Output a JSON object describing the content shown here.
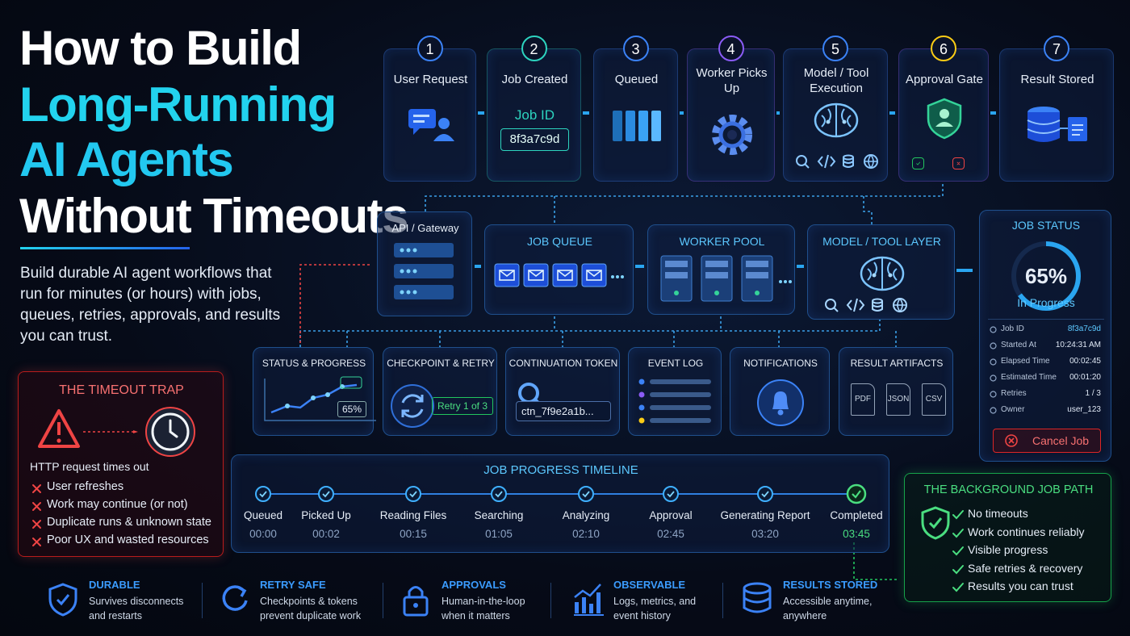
{
  "header": {
    "title_lines": [
      "How to Build",
      "Long-Running",
      "AI Agents",
      "Without Timeouts"
    ],
    "subtitle": "Build durable AI agent workflows that run for minutes (or hours) with jobs, queues, retries, approvals, and results you can trust."
  },
  "steps": [
    {
      "number": "1",
      "label": "User Request"
    },
    {
      "number": "2",
      "label": "Job Created",
      "job_id_label": "Job ID",
      "job_id": "8f3a7c9d"
    },
    {
      "number": "3",
      "label": "Queued"
    },
    {
      "number": "4",
      "label": "Worker Picks Up"
    },
    {
      "number": "5",
      "label": "Model / Tool Execution"
    },
    {
      "number": "6",
      "label": "Approval Gate"
    },
    {
      "number": "7",
      "label": "Result Stored"
    }
  ],
  "architecture": [
    {
      "label": "API / Gateway"
    },
    {
      "label": "JOB QUEUE"
    },
    {
      "label": "WORKER POOL"
    },
    {
      "label": "MODEL / TOOL LAYER"
    }
  ],
  "services": [
    {
      "label": "STATUS & PROGRESS",
      "badge": "65%"
    },
    {
      "label": "CHECKPOINT & RETRY",
      "badge": "Retry 1 of 3"
    },
    {
      "label": "CONTINUATION TOKEN",
      "badge": "ctn_7f9e2a1b..."
    },
    {
      "label": "EVENT LOG"
    },
    {
      "label": "NOTIFICATIONS"
    },
    {
      "label": "RESULT ARTIFACTS",
      "files": [
        "PDF",
        "JSON",
        "CSV"
      ]
    }
  ],
  "timeout_trap": {
    "title": "THE TIMEOUT TRAP",
    "caption": "HTTP request times out",
    "items": [
      "User refreshes",
      "Work may continue (or not)",
      "Duplicate runs & unknown state",
      "Poor UX and wasted resources"
    ]
  },
  "timeline": {
    "title": "JOB PROGRESS TIMELINE",
    "stages": [
      {
        "label": "Queued",
        "time": "00:00"
      },
      {
        "label": "Picked Up",
        "time": "00:02"
      },
      {
        "label": "Reading Files",
        "time": "00:15"
      },
      {
        "label": "Searching",
        "time": "01:05"
      },
      {
        "label": "Analyzing",
        "time": "02:10"
      },
      {
        "label": "Approval",
        "time": "02:45"
      },
      {
        "label": "Generating Report",
        "time": "03:20"
      },
      {
        "label": "Completed",
        "time": "03:45"
      }
    ]
  },
  "job_status": {
    "title": "JOB STATUS",
    "progress": 65,
    "progress_label": "65%",
    "state": "In Progress",
    "fields": [
      {
        "label": "Job ID",
        "value": "8f3a7c9d"
      },
      {
        "label": "Started At",
        "value": "10:24:31 AM"
      },
      {
        "label": "Elapsed Time",
        "value": "00:02:45"
      },
      {
        "label": "Estimated Time",
        "value": "00:01:20"
      },
      {
        "label": "Retries",
        "value": "1 / 3"
      },
      {
        "label": "Owner",
        "value": "user_123"
      }
    ],
    "cancel": "Cancel Job"
  },
  "background_path": {
    "title": "THE BACKGROUND JOB PATH",
    "items": [
      "No timeouts",
      "Work continues reliably",
      "Visible progress",
      "Safe retries & recovery",
      "Results you can trust"
    ]
  },
  "features": [
    {
      "title": "DURABLE",
      "text": "Survives disconnects and restarts"
    },
    {
      "title": "RETRY SAFE",
      "text": "Checkpoints & tokens prevent duplicate work"
    },
    {
      "title": "APPROVALS",
      "text": "Human-in-the-loop when it matters"
    },
    {
      "title": "OBSERVABLE",
      "text": "Logs, metrics, and event history"
    },
    {
      "title": "RESULTS STORED",
      "text": "Accessible anytime, anywhere"
    }
  ]
}
